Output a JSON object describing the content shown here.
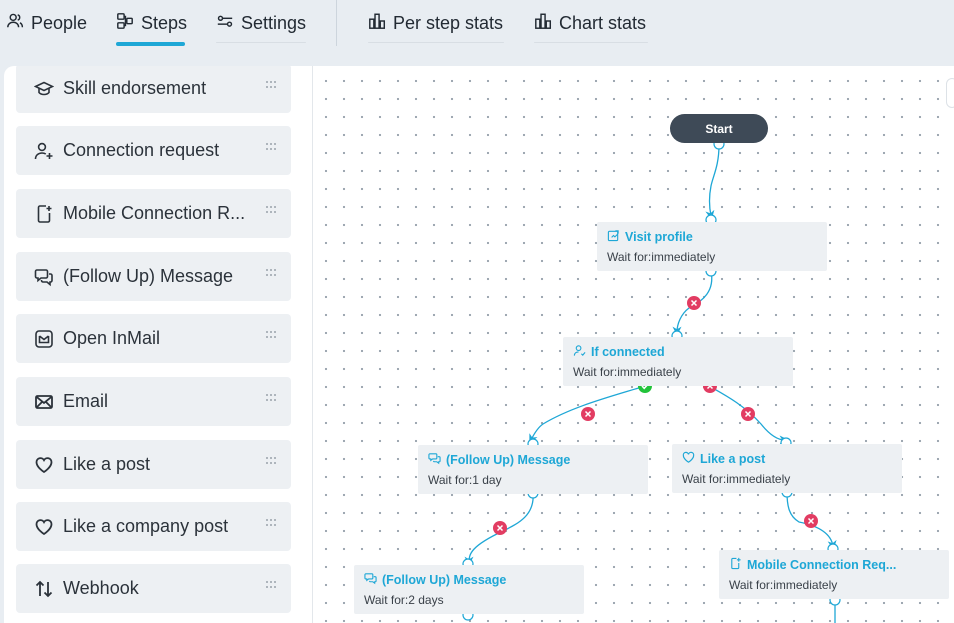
{
  "tabs": [
    {
      "label": "People",
      "icon": "people-icon"
    },
    {
      "label": "Steps",
      "icon": "steps-icon",
      "active": true
    },
    {
      "label": "Settings",
      "icon": "settings-icon"
    },
    {
      "label": "Per step stats",
      "icon": "bar-chart-icon"
    },
    {
      "label": "Chart stats",
      "icon": "bar-chart-icon"
    }
  ],
  "colors": {
    "accent": "#1ea7d6",
    "fail": "#e23c62",
    "success": "#22c33a",
    "start_node": "#3e4a57"
  },
  "sidebar": {
    "items": [
      {
        "label": "Skill endorsement",
        "icon": "graduation-cap-icon"
      },
      {
        "label": "Connection request",
        "icon": "user-plus-icon"
      },
      {
        "label": "Mobile Connection R...",
        "icon": "mobile-plus-icon"
      },
      {
        "label": "(Follow Up) Message",
        "icon": "chat-bubbles-icon"
      },
      {
        "label": "Open InMail",
        "icon": "inmail-icon"
      },
      {
        "label": "Email",
        "icon": "envelope-icon"
      },
      {
        "label": "Like a post",
        "icon": "heart-icon"
      },
      {
        "label": "Like a company post",
        "icon": "heart-icon"
      },
      {
        "label": "Webhook",
        "icon": "up-down-arrows-icon"
      }
    ]
  },
  "flow": {
    "start_label": "Start",
    "nodes": [
      {
        "title": "Visit profile",
        "icon": "visit-profile-icon",
        "wait": "Wait for:immediately"
      },
      {
        "title": "If connected",
        "icon": "user-check-icon",
        "wait": "Wait for:immediately"
      },
      {
        "title": "(Follow Up) Message",
        "icon": "chat-bubbles-icon",
        "wait": "Wait for:1 day"
      },
      {
        "title": "Like a post",
        "icon": "heart-icon",
        "wait": "Wait for:immediately"
      },
      {
        "title": "(Follow Up) Message",
        "icon": "chat-bubbles-icon",
        "wait": "Wait for:2 days"
      },
      {
        "title": "Mobile Connection Req...",
        "icon": "mobile-plus-icon",
        "wait": "Wait for:immediately"
      }
    ]
  }
}
